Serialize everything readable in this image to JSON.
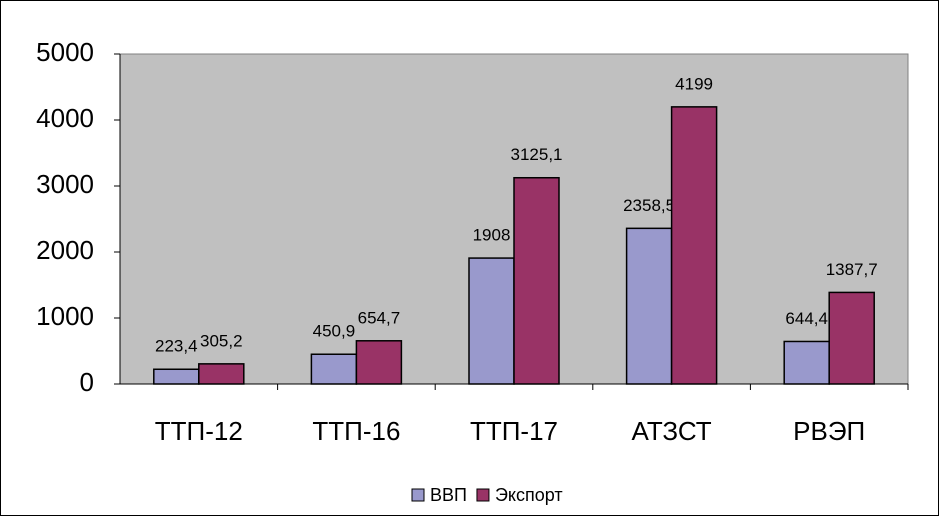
{
  "chart_data": {
    "type": "bar",
    "categories": [
      "ТТП-12",
      "ТТП-16",
      "ТТП-17",
      "АТЗСТ",
      "РВЭП"
    ],
    "series": [
      {
        "name": "ВВП",
        "color": "#9999cc",
        "values": [
          223.4,
          450.9,
          1908,
          2358.5,
          644.4
        ],
        "value_labels": [
          "223,4",
          "450,9",
          "1908",
          "2358,5",
          "644,4"
        ]
      },
      {
        "name": "Экспорт",
        "color": "#993366",
        "values": [
          305.2,
          654.7,
          3125.1,
          4199,
          1387.7
        ],
        "value_labels": [
          "305,2",
          "654,7",
          "3125,1",
          "4199",
          "1387,7"
        ]
      }
    ],
    "ylim": [
      0,
      5000
    ],
    "yticks": [
      0,
      1000,
      2000,
      3000,
      4000,
      5000
    ],
    "plot_background": "#c0c0c0",
    "legend": "bottom"
  }
}
